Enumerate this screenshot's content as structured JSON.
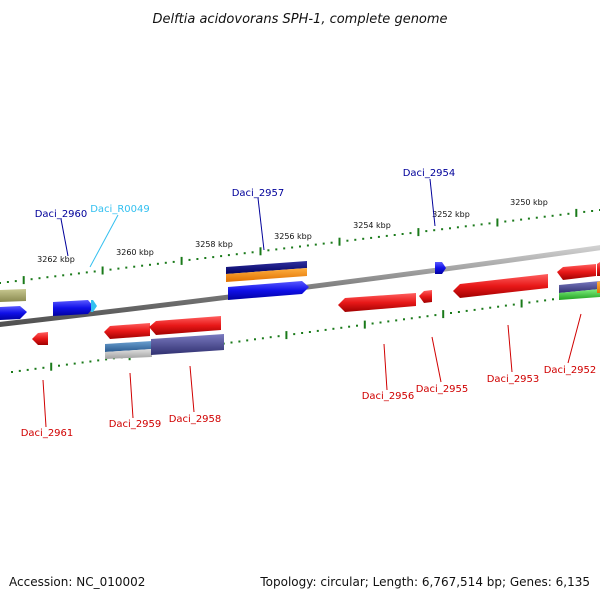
{
  "title": "Delftia acidovorans SPH-1, complete genome",
  "footer": {
    "accession": "Accession: NC_010002",
    "summary": "Topology: circular; Length: 6,767,514 bp; Genes: 6,135"
  },
  "colors": {
    "backbone": "#8a8a8a",
    "tick": "#1a7a1a",
    "forward_label": "#00009a",
    "rna_label": "#33c0f0",
    "reverse_label": "#d00000",
    "red_gene": "#e02020",
    "blue_gene": "#1a1ae0"
  },
  "scale": {
    "unit": "kbp",
    "upper_ticks": [
      "3262 kbp",
      "3260 kbp",
      "3258 kbp",
      "3256 kbp",
      "3254 kbp",
      "3252 kbp",
      "3250 kbp"
    ]
  },
  "genes": {
    "forward": [
      {
        "name": "Daci_2960",
        "type": "gene"
      },
      {
        "name": "Daci_R0049",
        "type": "rna"
      },
      {
        "name": "Daci_2957",
        "type": "gene"
      },
      {
        "name": "Daci_2954",
        "type": "gene"
      }
    ],
    "reverse": [
      {
        "name": "Daci_2961"
      },
      {
        "name": "Daci_2959"
      },
      {
        "name": "Daci_2958"
      },
      {
        "name": "Daci_2956"
      },
      {
        "name": "Daci_2955"
      },
      {
        "name": "Daci_2953"
      },
      {
        "name": "Daci_2952"
      }
    ]
  }
}
